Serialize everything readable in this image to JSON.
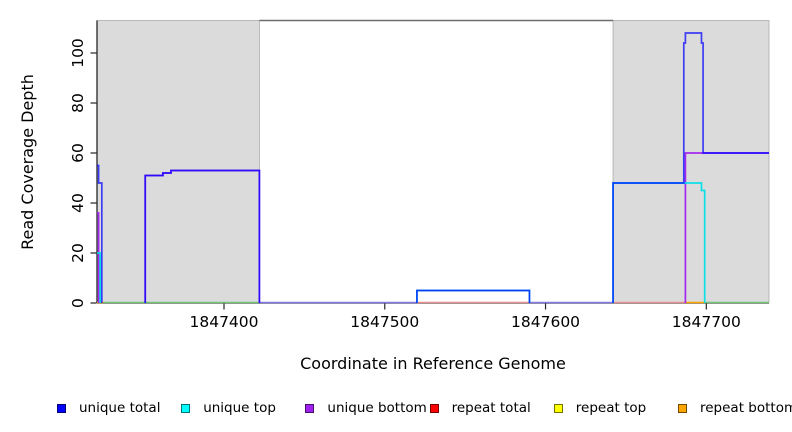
{
  "chart_data": {
    "type": "line",
    "title": "",
    "xlabel": "Coordinate in Reference Genome",
    "ylabel": "Read Coverage Depth",
    "xlim": [
      1847321,
      1847739
    ],
    "ylim": [
      0,
      113
    ],
    "xticks": [
      1847400,
      1847500,
      1847600,
      1847700
    ],
    "yticks": [
      0,
      20,
      40,
      60,
      80,
      100
    ],
    "grid": false,
    "legend_position": "bottom",
    "shade_color": "#dbdbdb",
    "shaded_regions": [
      {
        "x1": 1847321,
        "x2": 1847422
      },
      {
        "x1": 1847642,
        "x2": 1847739
      }
    ],
    "series": [
      {
        "name": "unique total",
        "color": "#0000FF",
        "opacity": 0.72,
        "steps": [
          [
            1847321,
            55
          ],
          [
            1847322,
            48
          ],
          [
            1847324,
            0
          ],
          [
            1847351,
            51
          ],
          [
            1847362,
            52
          ],
          [
            1847367,
            53
          ],
          [
            1847422,
            0
          ],
          [
            1847520,
            5
          ],
          [
            1847590,
            0
          ],
          [
            1847642,
            48
          ],
          [
            1847686,
            104
          ],
          [
            1847687,
            108
          ],
          [
            1847697,
            104
          ],
          [
            1847698,
            60
          ]
        ]
      },
      {
        "name": "unique top",
        "color": "#00E0E8",
        "opacity": 0.95,
        "steps": [
          [
            1847321,
            20
          ],
          [
            1847323,
            0
          ],
          [
            1847520,
            5
          ],
          [
            1847590,
            0
          ],
          [
            1847642,
            48
          ],
          [
            1847697,
            45
          ],
          [
            1847699,
            0
          ]
        ]
      },
      {
        "name": "unique bottom",
        "color": "#A020F0",
        "opacity": 0.95,
        "steps": [
          [
            1847321,
            36
          ],
          [
            1847322,
            0
          ],
          [
            1847351,
            51
          ],
          [
            1847362,
            52
          ],
          [
            1847367,
            53
          ],
          [
            1847422,
            0
          ],
          [
            1847687,
            60
          ]
        ]
      },
      {
        "name": "repeat total",
        "color": "#FF0000",
        "opacity": 1,
        "steps": [
          [
            1847321,
            0
          ]
        ]
      },
      {
        "name": "repeat top",
        "color": "#FFFF00",
        "opacity": 1,
        "steps": [
          [
            1847321,
            0
          ]
        ]
      },
      {
        "name": "repeat bottom",
        "color": "#FFA500",
        "opacity": 1,
        "steps": [
          [
            1847321,
            0
          ]
        ]
      }
    ],
    "baseline_segments": [
      {
        "x1": 1847321,
        "x2": 1847325,
        "color": "#ffa500"
      },
      {
        "x1": 1847325,
        "x2": 1847422,
        "color": "#74c476"
      },
      {
        "x1": 1847422,
        "x2": 1847520,
        "color": "#8678ea"
      },
      {
        "x1": 1847520,
        "x2": 1847590,
        "color": "#e88f8f"
      },
      {
        "x1": 1847590,
        "x2": 1847642,
        "color": "#8678ea"
      },
      {
        "x1": 1847642,
        "x2": 1847687,
        "color": "#e88f8f"
      },
      {
        "x1": 1847687,
        "x2": 1847699,
        "color": "#ffa500"
      },
      {
        "x1": 1847699,
        "x2": 1847739,
        "color": "#74c476"
      }
    ]
  },
  "legend": {
    "items": [
      {
        "label": "unique total",
        "color": "#0000FF"
      },
      {
        "label": "unique top",
        "color": "#00FFFF"
      },
      {
        "label": "unique bottom",
        "color": "#A020F0"
      },
      {
        "label": "repeat total",
        "color": "#FF0000"
      },
      {
        "label": "repeat top",
        "color": "#FFFF00"
      },
      {
        "label": "repeat bottom",
        "color": "#FFA500"
      }
    ]
  }
}
